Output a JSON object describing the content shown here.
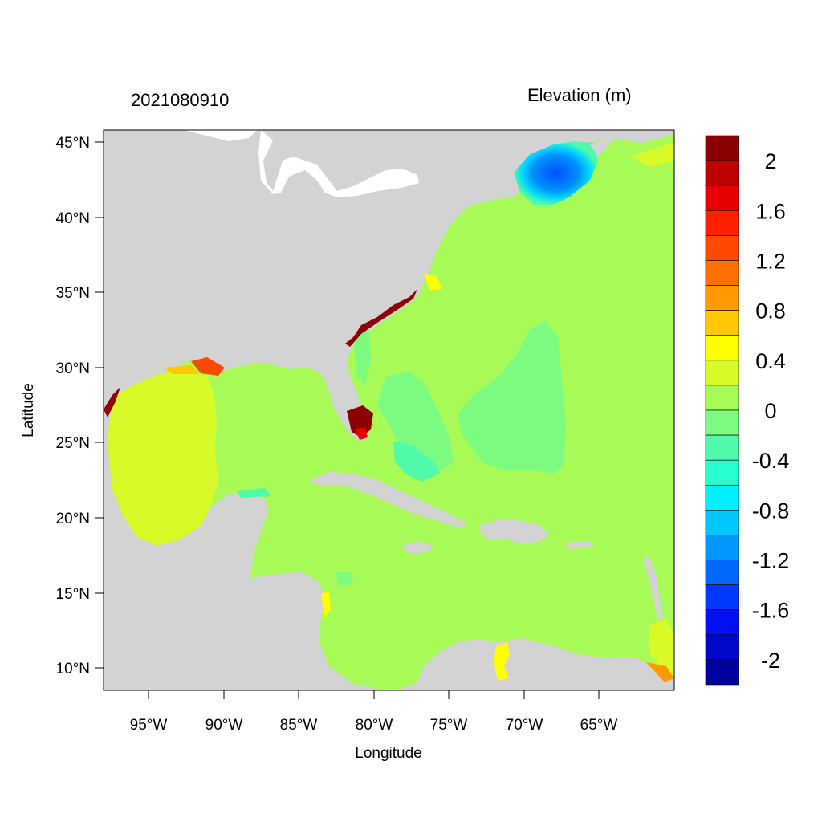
{
  "map": {
    "left_title": "2021080910",
    "right_title": "Elevation (m)",
    "xlabel": "Longitude",
    "ylabel": "Latitude",
    "x_ticks": [
      "95°W",
      "90°W",
      "85°W",
      "80°W",
      "75°W",
      "70°W",
      "65°W"
    ],
    "y_ticks": [
      "45°N",
      "40°N",
      "35°N",
      "30°N",
      "25°N",
      "20°N",
      "15°N",
      "10°N"
    ],
    "lon_range": [
      -98,
      -60
    ],
    "lat_range": [
      9,
      46
    ],
    "land_color": "#d3d3d3",
    "ocean_color": "#a8fa57"
  },
  "colorbar": {
    "labels": [
      "2",
      "1.6",
      "1.2",
      "0.8",
      "0.4",
      "0",
      "-0.4",
      "-0.8",
      "-1.2",
      "-1.6",
      "-2"
    ],
    "colors": [
      "#8b0000",
      "#c00000",
      "#e60000",
      "#ff2000",
      "#ff4800",
      "#ff7000",
      "#ff9a00",
      "#ffc800",
      "#ffff00",
      "#d8fa28",
      "#a8fa57",
      "#7dfa80",
      "#50faa8",
      "#28ffd0",
      "#00f0ff",
      "#00c8ff",
      "#0098ff",
      "#0068ff",
      "#0038ff",
      "#0010f0",
      "#0008c8",
      "#0000a0"
    ]
  },
  "chart_data": {
    "type": "heatmap",
    "title": "2021080910",
    "subtitle": "Elevation (m)",
    "xlabel": "Longitude",
    "ylabel": "Latitude",
    "xlim": [
      -98,
      -60
    ],
    "ylim": [
      9,
      46
    ],
    "color_scale_range": [
      -2,
      2
    ],
    "colorbar_ticks": [
      2,
      1.6,
      1.2,
      0.8,
      0.4,
      0,
      -0.4,
      -0.8,
      -1.2,
      -1.6,
      -2
    ]
  }
}
